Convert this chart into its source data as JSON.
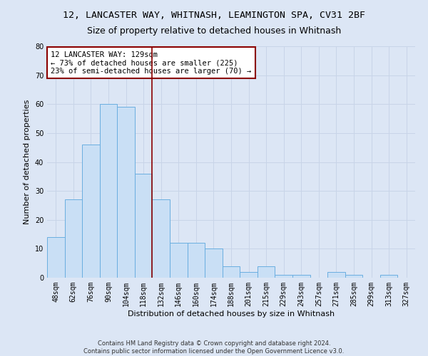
{
  "title_line1": "12, LANCASTER WAY, WHITNASH, LEAMINGTON SPA, CV31 2BF",
  "title_line2": "Size of property relative to detached houses in Whitnash",
  "xlabel": "Distribution of detached houses by size in Whitnash",
  "ylabel": "Number of detached properties",
  "footnote1": "Contains HM Land Registry data © Crown copyright and database right 2024.",
  "footnote2": "Contains public sector information licensed under the Open Government Licence v3.0.",
  "bar_labels": [
    "48sqm",
    "62sqm",
    "76sqm",
    "90sqm",
    "104sqm",
    "118sqm",
    "132sqm",
    "146sqm",
    "160sqm",
    "174sqm",
    "188sqm",
    "201sqm",
    "215sqm",
    "229sqm",
    "243sqm",
    "257sqm",
    "271sqm",
    "285sqm",
    "299sqm",
    "313sqm",
    "327sqm"
  ],
  "bar_values": [
    14,
    27,
    46,
    60,
    59,
    36,
    27,
    12,
    12,
    10,
    4,
    2,
    4,
    1,
    1,
    0,
    2,
    1,
    0,
    1,
    0
  ],
  "bar_color": "#c9dff5",
  "bar_edge_color": "#6aaee0",
  "vline_x": 5.5,
  "vline_color": "#8b0000",
  "annotation_text": "12 LANCASTER WAY: 129sqm\n← 73% of detached houses are smaller (225)\n23% of semi-detached houses are larger (70) →",
  "annotation_box_color": "#ffffff",
  "annotation_box_edge": "#8b0000",
  "ylim": [
    0,
    80
  ],
  "yticks": [
    0,
    10,
    20,
    30,
    40,
    50,
    60,
    70,
    80
  ],
  "grid_color": "#c8d4e8",
  "background_color": "#dce6f5",
  "fig_background": "#dce6f5",
  "title_fontsize": 9.5,
  "subtitle_fontsize": 9,
  "axis_label_fontsize": 8,
  "tick_fontsize": 7,
  "annotation_fontsize": 7.5,
  "footnote_fontsize": 6
}
